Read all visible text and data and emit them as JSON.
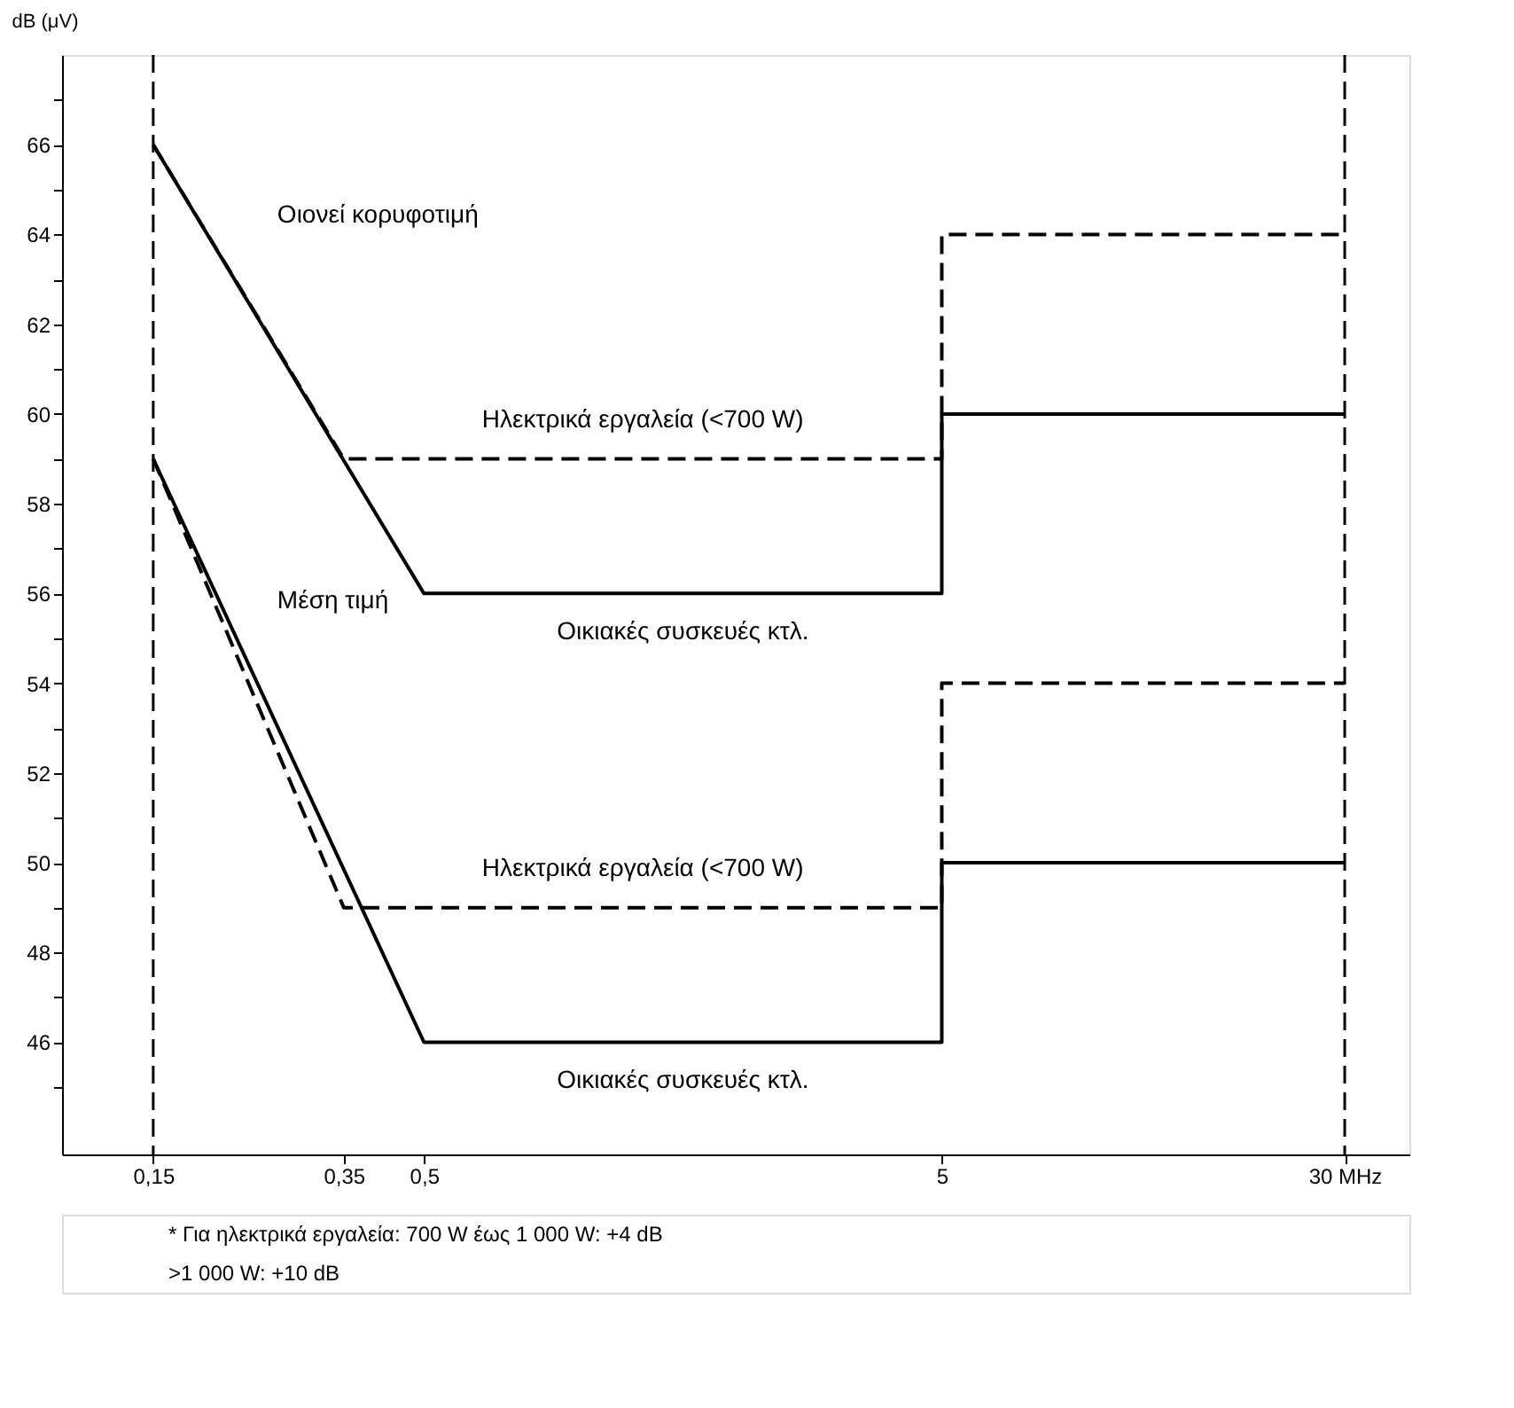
{
  "chart_data": {
    "type": "line",
    "ylabel": "dB (μV)",
    "series": [
      {
        "name": "Οικιακές συσκευές κτλ.",
        "color": "#000000",
        "line_style": "solid",
        "x": [
          0.15,
          0.5,
          5,
          5,
          30
        ],
        "values": [
          66,
          56,
          56,
          60,
          60
        ]
      },
      {
        "name": "Ηλεκτρικά εργαλεία (<700 W)",
        "color": "#000000",
        "line_style": "dashed",
        "x": [
          0.15,
          0.35,
          5,
          5,
          30
        ],
        "values": [
          66,
          59,
          59,
          64,
          64
        ]
      },
      {
        "name": "Οικιακές συσκευές κτλ.",
        "color": "#000000",
        "line_style": "solid",
        "x": [
          0.15,
          0.5,
          5,
          5,
          30
        ],
        "values": [
          59,
          46,
          46,
          50,
          50
        ]
      },
      {
        "name": "Ηλεκτρικά εργαλεία (<700 W)",
        "color": "#000000",
        "line_style": "dashed",
        "x": [
          0.15,
          0.35,
          5,
          5,
          30
        ],
        "values": [
          59,
          49,
          49,
          54,
          54
        ]
      }
    ],
    "log": "x",
    "marker": "none",
    "grid": false,
    "xlim": [
      0.1,
      40
    ],
    "ylim": [
      43.5,
      68
    ],
    "xticks": [
      {
        "value": 0.15,
        "label": "0,15"
      },
      {
        "value": 0.35,
        "label": "0,35"
      },
      {
        "value": 0.5,
        "label": "0,5"
      },
      5,
      {
        "value": 30,
        "label": "30 MHz"
      }
    ],
    "yticks": [
      {
        "value": 45,
        "label": null
      },
      46,
      {
        "value": 47,
        "label": null
      },
      48,
      {
        "value": 49,
        "label": null
      },
      50,
      {
        "value": 51,
        "label": null
      },
      52,
      {
        "value": 53,
        "label": null
      },
      54,
      {
        "value": 55,
        "label": null
      },
      56,
      {
        "value": 57,
        "label": null
      },
      58,
      {
        "value": 59,
        "label": null
      },
      60,
      {
        "value": 61,
        "label": null
      },
      62,
      {
        "value": 63,
        "label": null
      },
      64,
      {
        "value": 65,
        "label": null
      },
      66,
      {
        "value": 67,
        "label": null
      }
    ],
    "ref_lines": [
      {
        "axis": "x",
        "value": 0.15,
        "line_style": "dashed"
      },
      {
        "axis": "x",
        "value": 30,
        "line_style": "dashed"
      }
    ],
    "annotations": [
      "Οιονεί κορυφοτιμή",
      "Μέση τιμή",
      "* Για ηλεκτρικά εργαλεία: 700 W έως 1 000 W:   +4 dB",
      ">1 000 W:   +10 dB"
    ]
  }
}
